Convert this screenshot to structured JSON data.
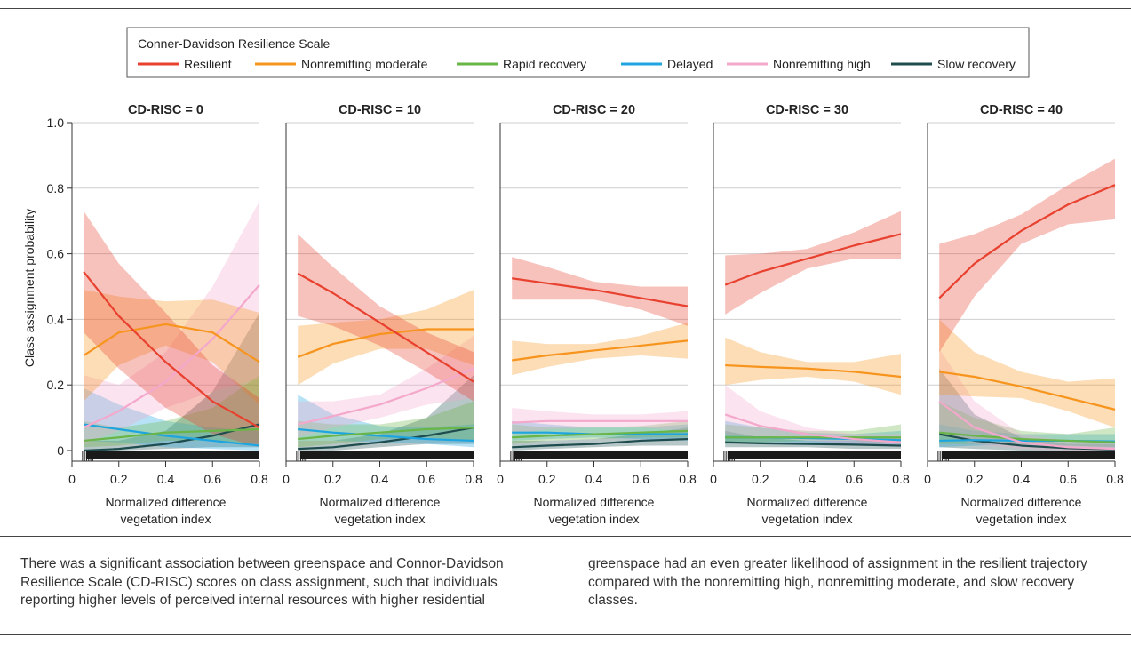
{
  "caption": {
    "left": "There was a significant association between greenspace and Connor-Davidson Resilience Scale (CD-RISC) scores on class assignment, such that individuals reporting higher levels of perceived internal resources with higher residential",
    "right": "greenspace had an even greater likelihood of assignment in the resilient trajectory compared with the nonremitting high, nonremitting moderate, and slow recovery classes."
  },
  "chart_data": {
    "type": "line",
    "legend_title": "Conner-Davidson Resilience Scale",
    "legend_placement": "top-center",
    "ylabel": "Class assignment probability",
    "xlabel": "Normalized difference vegetation index",
    "ylim": [
      0,
      1.0
    ],
    "xlim": [
      0,
      0.8
    ],
    "yticks": [
      0,
      0.2,
      0.4,
      0.6,
      0.8,
      1.0
    ],
    "ytick_labels": [
      "0",
      "0.2",
      "0.4",
      "0.6",
      "0.8",
      "1.0"
    ],
    "xticks": [
      0,
      0.2,
      0.4,
      0.6,
      0.8
    ],
    "xtick_labels": [
      "0",
      "0.2",
      "0.4",
      "0.6",
      "0.8"
    ],
    "grid": true,
    "x": [
      0.05,
      0.2,
      0.4,
      0.6,
      0.8
    ],
    "series_names": [
      "Resilient",
      "Nonremitting moderate",
      "Rapid recovery",
      "Delayed",
      "Nonremitting high",
      "Slow recovery"
    ],
    "colors": {
      "Resilient": "#e8412f",
      "Nonremitting moderate": "#f7941d",
      "Rapid recovery": "#6ab547",
      "Delayed": "#1ea5e0",
      "Nonremitting high": "#f3a8cc",
      "Slow recovery": "#1f4d4f"
    },
    "panels": [
      {
        "title": "CD-RISC = 0",
        "series": [
          {
            "name": "Resilient",
            "values": [
              0.545,
              0.41,
              0.27,
              0.15,
              0.07
            ],
            "lower": [
              0.36,
              0.25,
              0.13,
              0.05,
              0.01
            ],
            "upper": [
              0.73,
              0.57,
              0.42,
              0.26,
              0.16
            ]
          },
          {
            "name": "Nonremitting moderate",
            "values": [
              0.29,
              0.36,
              0.385,
              0.36,
              0.27
            ],
            "lower": [
              0.15,
              0.26,
              0.32,
              0.27,
              0.14
            ],
            "upper": [
              0.49,
              0.47,
              0.455,
              0.46,
              0.42
            ]
          },
          {
            "name": "Rapid recovery",
            "values": [
              0.03,
              0.04,
              0.055,
              0.06,
              0.065
            ],
            "lower": [
              0.01,
              0.015,
              0.03,
              0.03,
              0.02
            ],
            "upper": [
              0.09,
              0.07,
              0.09,
              0.13,
              0.23
            ]
          },
          {
            "name": "Delayed",
            "values": [
              0.08,
              0.065,
              0.045,
              0.03,
              0.015
            ],
            "lower": [
              0.03,
              0.025,
              0.01,
              0.005,
              0.0
            ],
            "upper": [
              0.19,
              0.14,
              0.09,
              0.07,
              0.06
            ]
          },
          {
            "name": "Nonremitting high",
            "values": [
              0.07,
              0.12,
              0.21,
              0.34,
              0.505
            ],
            "lower": [
              0.02,
              0.06,
              0.13,
              0.18,
              0.22
            ],
            "upper": [
              0.23,
              0.2,
              0.3,
              0.5,
              0.76
            ]
          },
          {
            "name": "Slow recovery",
            "values": [
              0.0,
              0.005,
              0.02,
              0.045,
              0.08
            ],
            "lower": [
              0.0,
              0.0,
              0.005,
              0.01,
              0.01
            ],
            "upper": [
              0.03,
              0.03,
              0.06,
              0.18,
              0.42
            ]
          }
        ]
      },
      {
        "title": "CD-RISC = 10",
        "series": [
          {
            "name": "Resilient",
            "values": [
              0.54,
              0.48,
              0.39,
              0.3,
              0.21
            ],
            "lower": [
              0.41,
              0.38,
              0.32,
              0.24,
              0.15
            ],
            "upper": [
              0.66,
              0.56,
              0.44,
              0.36,
              0.3
            ]
          },
          {
            "name": "Nonremitting moderate",
            "values": [
              0.285,
              0.325,
              0.355,
              0.37,
              0.37
            ],
            "lower": [
              0.2,
              0.265,
              0.31,
              0.31,
              0.26
            ],
            "upper": [
              0.38,
              0.39,
              0.4,
              0.43,
              0.49
            ]
          },
          {
            "name": "Rapid recovery",
            "values": [
              0.035,
              0.045,
              0.055,
              0.065,
              0.07
            ],
            "lower": [
              0.01,
              0.02,
              0.035,
              0.04,
              0.03
            ],
            "upper": [
              0.09,
              0.08,
              0.08,
              0.1,
              0.15
            ]
          },
          {
            "name": "Delayed",
            "values": [
              0.065,
              0.055,
              0.045,
              0.035,
              0.03
            ],
            "lower": [
              0.03,
              0.03,
              0.025,
              0.02,
              0.01
            ],
            "upper": [
              0.17,
              0.11,
              0.075,
              0.07,
              0.08
            ]
          },
          {
            "name": "Nonremitting high",
            "values": [
              0.08,
              0.105,
              0.14,
              0.19,
              0.25
            ],
            "lower": [
              0.04,
              0.07,
              0.1,
              0.14,
              0.16
            ],
            "upper": [
              0.15,
              0.15,
              0.17,
              0.25,
              0.35
            ]
          },
          {
            "name": "Slow recovery",
            "values": [
              0.005,
              0.01,
              0.025,
              0.045,
              0.07
            ],
            "lower": [
              0.0,
              0.0,
              0.01,
              0.02,
              0.02
            ],
            "upper": [
              0.03,
              0.03,
              0.05,
              0.1,
              0.23
            ]
          }
        ]
      },
      {
        "title": "CD-RISC = 20",
        "series": [
          {
            "name": "Resilient",
            "values": [
              0.525,
              0.51,
              0.49,
              0.465,
              0.44
            ],
            "lower": [
              0.46,
              0.46,
              0.46,
              0.43,
              0.38
            ],
            "upper": [
              0.59,
              0.56,
              0.515,
              0.5,
              0.5
            ]
          },
          {
            "name": "Nonremitting moderate",
            "values": [
              0.275,
              0.29,
              0.305,
              0.32,
              0.335
            ],
            "lower": [
              0.23,
              0.255,
              0.28,
              0.29,
              0.28
            ],
            "upper": [
              0.335,
              0.325,
              0.325,
              0.35,
              0.39
            ]
          },
          {
            "name": "Rapid recovery",
            "values": [
              0.04,
              0.045,
              0.05,
              0.055,
              0.06
            ],
            "lower": [
              0.02,
              0.03,
              0.035,
              0.04,
              0.04
            ],
            "upper": [
              0.08,
              0.07,
              0.07,
              0.075,
              0.09
            ]
          },
          {
            "name": "Delayed",
            "values": [
              0.055,
              0.055,
              0.05,
              0.05,
              0.05
            ],
            "lower": [
              0.03,
              0.035,
              0.04,
              0.035,
              0.03
            ],
            "upper": [
              0.09,
              0.08,
              0.07,
              0.07,
              0.08
            ]
          },
          {
            "name": "Nonremitting high",
            "values": [
              0.085,
              0.09,
              0.09,
              0.09,
              0.09
            ],
            "lower": [
              0.05,
              0.065,
              0.07,
              0.07,
              0.06
            ],
            "upper": [
              0.13,
              0.12,
              0.11,
              0.11,
              0.12
            ]
          },
          {
            "name": "Slow recovery",
            "values": [
              0.01,
              0.015,
              0.02,
              0.03,
              0.035
            ],
            "lower": [
              0.0,
              0.005,
              0.01,
              0.015,
              0.015
            ],
            "upper": [
              0.03,
              0.03,
              0.035,
              0.05,
              0.07
            ]
          }
        ]
      },
      {
        "title": "CD-RISC = 30",
        "series": [
          {
            "name": "Resilient",
            "values": [
              0.505,
              0.545,
              0.585,
              0.625,
              0.66
            ],
            "lower": [
              0.415,
              0.48,
              0.555,
              0.585,
              0.585
            ],
            "upper": [
              0.595,
              0.6,
              0.615,
              0.665,
              0.73
            ]
          },
          {
            "name": "Nonremitting moderate",
            "values": [
              0.26,
              0.255,
              0.25,
              0.24,
              0.225
            ],
            "lower": [
              0.2,
              0.215,
              0.225,
              0.21,
              0.17
            ],
            "upper": [
              0.345,
              0.3,
              0.27,
              0.27,
              0.295
            ]
          },
          {
            "name": "Rapid recovery",
            "values": [
              0.04,
              0.04,
              0.04,
              0.04,
              0.04
            ],
            "lower": [
              0.02,
              0.025,
              0.03,
              0.03,
              0.02
            ],
            "upper": [
              0.08,
              0.07,
              0.06,
              0.06,
              0.08
            ]
          },
          {
            "name": "Delayed",
            "values": [
              0.04,
              0.04,
              0.038,
              0.035,
              0.032
            ],
            "lower": [
              0.02,
              0.025,
              0.025,
              0.02,
              0.015
            ],
            "upper": [
              0.09,
              0.07,
              0.055,
              0.05,
              0.06
            ]
          },
          {
            "name": "Nonremitting high",
            "values": [
              0.11,
              0.075,
              0.05,
              0.035,
              0.025
            ],
            "lower": [
              0.05,
              0.04,
              0.03,
              0.02,
              0.01
            ],
            "upper": [
              0.2,
              0.12,
              0.07,
              0.05,
              0.05
            ]
          },
          {
            "name": "Slow recovery",
            "values": [
              0.025,
              0.022,
              0.02,
              0.018,
              0.015
            ],
            "lower": [
              0.01,
              0.01,
              0.01,
              0.005,
              0.005
            ],
            "upper": [
              0.06,
              0.04,
              0.03,
              0.03,
              0.04
            ]
          }
        ]
      },
      {
        "title": "CD-RISC = 40",
        "series": [
          {
            "name": "Resilient",
            "values": [
              0.465,
              0.57,
              0.67,
              0.75,
              0.81
            ],
            "lower": [
              0.3,
              0.47,
              0.63,
              0.69,
              0.705
            ],
            "upper": [
              0.63,
              0.66,
              0.72,
              0.81,
              0.89
            ]
          },
          {
            "name": "Nonremitting moderate",
            "values": [
              0.24,
              0.225,
              0.195,
              0.16,
              0.125
            ],
            "lower": [
              0.17,
              0.165,
              0.16,
              0.12,
              0.07
            ],
            "upper": [
              0.4,
              0.3,
              0.24,
              0.21,
              0.22
            ]
          },
          {
            "name": "Rapid recovery",
            "values": [
              0.055,
              0.045,
              0.035,
              0.03,
              0.025
            ],
            "lower": [
              0.02,
              0.02,
              0.02,
              0.015,
              0.01
            ],
            "upper": [
              0.15,
              0.1,
              0.06,
              0.05,
              0.07
            ]
          },
          {
            "name": "Delayed",
            "values": [
              0.03,
              0.032,
              0.03,
              0.03,
              0.028
            ],
            "lower": [
              0.01,
              0.015,
              0.02,
              0.015,
              0.01
            ],
            "upper": [
              0.08,
              0.06,
              0.05,
              0.05,
              0.05
            ]
          },
          {
            "name": "Nonremitting high",
            "values": [
              0.15,
              0.07,
              0.025,
              0.01,
              0.005
            ],
            "lower": [
              0.05,
              0.02,
              0.005,
              0.0,
              0.0
            ],
            "upper": [
              0.31,
              0.15,
              0.05,
              0.03,
              0.02
            ]
          },
          {
            "name": "Slow recovery",
            "values": [
              0.05,
              0.03,
              0.015,
              0.007,
              0.003
            ],
            "lower": [
              0.01,
              0.005,
              0.0,
              0.0,
              0.0
            ],
            "upper": [
              0.25,
              0.11,
              0.04,
              0.02,
              0.02
            ]
          }
        ]
      }
    ]
  }
}
